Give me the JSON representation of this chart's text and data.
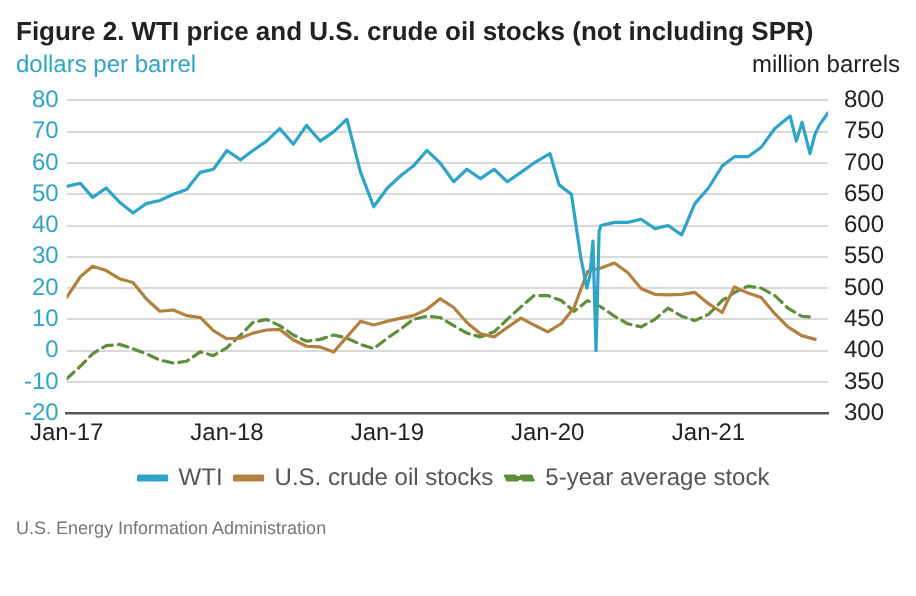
{
  "chart_data": {
    "type": "line",
    "title": "Figure 2. WTI price and U.S. crude oil stocks (not including SPR)",
    "ylabel": "dollars per barrel",
    "y2label": "million barrels",
    "xlim": [
      "2017-01",
      "2021-09-30"
    ],
    "xticks": [
      {
        "value": "2017-01",
        "label": "Jan-17"
      },
      {
        "value": "2018-01",
        "label": "Jan-18"
      },
      {
        "value": "2019-01",
        "label": "Jan-19"
      },
      {
        "value": "2020-01",
        "label": "Jan-20"
      },
      {
        "value": "2021-01",
        "label": "Jan-21"
      }
    ],
    "ylim": [
      -20,
      80
    ],
    "yticks": [
      -20,
      -10,
      0,
      10,
      20,
      30,
      40,
      50,
      60,
      70,
      80
    ],
    "y2lim": [
      300,
      800
    ],
    "y2ticks": [
      300,
      350,
      400,
      450,
      500,
      550,
      600,
      650,
      700,
      750,
      800
    ],
    "grid": "y",
    "legend": "bottom",
    "series": [
      {
        "name": "WTI",
        "color": "#2fa4c9",
        "x": [
          "2017-01",
          "2017-02",
          "2017-03",
          "2017-04",
          "2017-05",
          "2017-06",
          "2017-07",
          "2017-08",
          "2017-09",
          "2017-10",
          "2017-11",
          "2017-12",
          "2018-01",
          "2018-02",
          "2018-03",
          "2018-04",
          "2018-05",
          "2018-06",
          "2018-07",
          "2018-08",
          "2018-09",
          "2018-10",
          "2018-11",
          "2018-12",
          "2019-01",
          "2019-02",
          "2019-03",
          "2019-04",
          "2019-05",
          "2019-06",
          "2019-07",
          "2019-08",
          "2019-09",
          "2019-10",
          "2019-11",
          "2019-12",
          "2020-01-06",
          "2020-01-27",
          "2020-02-24",
          "2020-03-16",
          "2020-03-30",
          "2020-04-06",
          "2020-04-13",
          "2020-04-20",
          "2020-04-27",
          "2020-05",
          "2020-06",
          "2020-07",
          "2020-08",
          "2020-09",
          "2020-10",
          "2020-11",
          "2020-12",
          "2021-01",
          "2021-02",
          "2021-03",
          "2021-04",
          "2021-05",
          "2021-06",
          "2021-07-06",
          "2021-07-20",
          "2021-08-02",
          "2021-08-20",
          "2021-08-31",
          "2021-09-10",
          "2021-09-30"
        ],
        "values": [
          52.5,
          53.5,
          49,
          52,
          47.5,
          44,
          47,
          48,
          50,
          51.5,
          57,
          58,
          64,
          61,
          64,
          67,
          71,
          66,
          72,
          67,
          70,
          74,
          57,
          46,
          52,
          56,
          59,
          64,
          60,
          54,
          58,
          55,
          58,
          54,
          57,
          60,
          63,
          53,
          50,
          30,
          20,
          24,
          35,
          0,
          38,
          40,
          41,
          41,
          42,
          39,
          40,
          37,
          47,
          52,
          59,
          62,
          62,
          65,
          71,
          75,
          67,
          73,
          63,
          69,
          72,
          76
        ]
      },
      {
        "name": "U.S. crude oil stocks",
        "color": "#b3813f",
        "axis": "y2",
        "x": [
          "2017-01",
          "2017-02",
          "2017-03",
          "2017-04",
          "2017-05",
          "2017-06",
          "2017-07",
          "2017-08",
          "2017-09",
          "2017-10",
          "2017-11",
          "2017-12",
          "2018-01",
          "2018-02",
          "2018-03",
          "2018-04",
          "2018-05",
          "2018-06",
          "2018-07",
          "2018-08",
          "2018-09",
          "2018-10",
          "2018-11",
          "2018-12",
          "2019-01",
          "2019-02",
          "2019-03",
          "2019-04",
          "2019-05",
          "2019-06",
          "2019-07",
          "2019-08",
          "2019-09",
          "2019-10",
          "2019-11",
          "2019-12",
          "2020-01",
          "2020-02",
          "2020-03",
          "2020-04",
          "2020-05",
          "2020-06",
          "2020-07",
          "2020-08",
          "2020-09",
          "2020-10",
          "2020-11",
          "2020-12",
          "2021-01",
          "2021-02",
          "2021-03",
          "2021-04",
          "2021-05",
          "2021-06",
          "2021-07",
          "2021-08",
          "2021-09"
        ],
        "values": [
          485,
          518,
          535,
          528,
          515,
          509,
          483,
          463,
          465,
          456,
          453,
          432,
          419,
          420,
          428,
          433,
          434,
          417,
          407,
          406,
          398,
          422,
          447,
          441,
          447,
          452,
          456,
          466,
          483,
          469,
          445,
          427,
          422,
          437,
          452,
          441,
          430,
          443,
          469,
          527,
          532,
          540,
          525,
          499,
          490,
          489,
          490,
          493,
          475,
          461,
          502,
          492,
          485,
          459,
          438,
          424,
          418
        ]
      },
      {
        "name": "5-year average stock",
        "color": "#5e8f3b",
        "axis": "y2",
        "line_style": "dashed",
        "x": [
          "2017-01",
          "2017-02",
          "2017-03",
          "2017-04",
          "2017-05",
          "2017-06",
          "2017-07",
          "2017-08",
          "2017-09",
          "2017-10",
          "2017-11",
          "2017-12",
          "2018-01",
          "2018-02",
          "2018-03",
          "2018-04",
          "2018-05",
          "2018-06",
          "2018-07",
          "2018-08",
          "2018-09",
          "2018-10",
          "2018-11",
          "2018-12",
          "2019-01",
          "2019-02",
          "2019-03",
          "2019-04",
          "2019-05",
          "2019-06",
          "2019-07",
          "2019-08",
          "2019-09",
          "2019-10",
          "2019-11",
          "2019-12",
          "2020-01",
          "2020-02",
          "2020-03",
          "2020-04",
          "2020-05",
          "2020-06",
          "2020-07",
          "2020-08",
          "2020-09",
          "2020-10",
          "2020-11",
          "2020-12",
          "2021-01",
          "2021-02",
          "2021-03",
          "2021-04",
          "2021-05",
          "2021-06",
          "2021-07",
          "2021-08",
          "2021-09"
        ],
        "values": [
          355,
          375,
          395,
          408,
          410,
          403,
          395,
          385,
          380,
          383,
          398,
          392,
          405,
          425,
          445,
          450,
          440,
          425,
          415,
          418,
          425,
          420,
          410,
          403,
          420,
          435,
          450,
          455,
          453,
          440,
          428,
          422,
          430,
          450,
          470,
          488,
          488,
          480,
          463,
          480,
          470,
          455,
          443,
          438,
          450,
          468,
          455,
          448,
          458,
          480,
          493,
          503,
          500,
          488,
          468,
          455,
          453
        ]
      }
    ],
    "annotations": [
      "U.S. Energy Information Administration"
    ]
  }
}
